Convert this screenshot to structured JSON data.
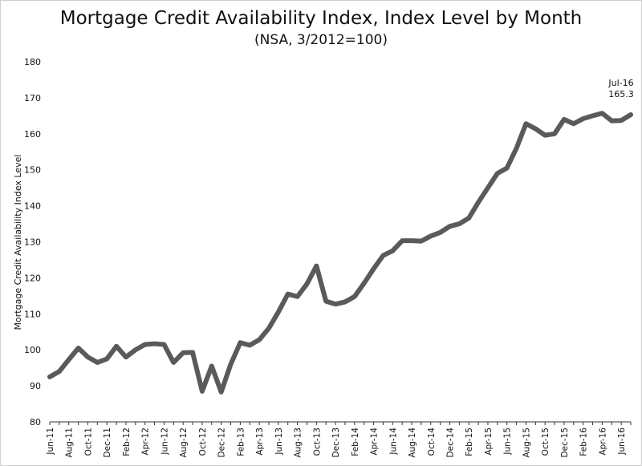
{
  "chart_data": {
    "type": "line",
    "title": "Mortgage Credit Availability Index, Index Level by Month",
    "subtitle": "(NSA, 3/2012=100)",
    "xlabel": "",
    "ylabel": "Mortgage Credit Availability Index Level",
    "ylim": [
      80,
      180
    ],
    "y_ticks": [
      80,
      90,
      100,
      110,
      120,
      130,
      140,
      150,
      160,
      170,
      180
    ],
    "grid": false,
    "color": "#5a5a5a",
    "x_tick_labels": [
      "Jun-11",
      "Aug-11",
      "Oct-11",
      "Dec-11",
      "Feb-12",
      "Apr-12",
      "Jun-12",
      "Aug-12",
      "Oct-12",
      "Dec-12",
      "Feb-13",
      "Apr-13",
      "Jun-13",
      "Aug-13",
      "Oct-13",
      "Dec-13",
      "Feb-14",
      "Apr-14",
      "Jun-14",
      "Aug-14",
      "Oct-14",
      "Dec-14",
      "Feb-15",
      "Apr-15",
      "Jun-15",
      "Aug-15",
      "Oct-15",
      "Dec-15",
      "Feb-16",
      "Apr-16",
      "Jun-16"
    ],
    "x": [
      "Jun-11",
      "Jul-11",
      "Aug-11",
      "Sep-11",
      "Oct-11",
      "Nov-11",
      "Dec-11",
      "Jan-12",
      "Feb-12",
      "Mar-12",
      "Apr-12",
      "May-12",
      "Jun-12",
      "Jul-12",
      "Aug-12",
      "Sep-12",
      "Oct-12",
      "Nov-12",
      "Dec-12",
      "Jan-13",
      "Feb-13",
      "Mar-13",
      "Apr-13",
      "May-13",
      "Jun-13",
      "Jul-13",
      "Aug-13",
      "Sep-13",
      "Oct-13",
      "Nov-13",
      "Dec-13",
      "Jan-14",
      "Feb-14",
      "Mar-14",
      "Apr-14",
      "May-14",
      "Jun-14",
      "Jul-14",
      "Aug-14",
      "Sep-14",
      "Oct-14",
      "Nov-14",
      "Dec-14",
      "Jan-15",
      "Feb-15",
      "Mar-15",
      "Apr-15",
      "May-15",
      "Jun-15",
      "Jul-15",
      "Aug-15",
      "Sep-15",
      "Oct-15",
      "Nov-15",
      "Dec-15",
      "Jan-16",
      "Feb-16",
      "Mar-16",
      "Apr-16",
      "May-16",
      "Jun-16",
      "Jul-16"
    ],
    "values": [
      92.5,
      94.0,
      97.3,
      100.5,
      98.0,
      96.5,
      97.5,
      101.0,
      98.0,
      100.0,
      101.5,
      101.7,
      101.5,
      96.5,
      99.2,
      99.3,
      88.5,
      95.5,
      88.3,
      96.0,
      102.0,
      101.3,
      102.8,
      106.0,
      110.5,
      115.5,
      114.8,
      118.3,
      123.3,
      113.5,
      112.7,
      113.3,
      114.8,
      118.5,
      122.5,
      126.2,
      127.5,
      130.3,
      130.3,
      130.2,
      131.6,
      132.6,
      134.3,
      135.0,
      136.6,
      141.0,
      145.0,
      149.0,
      150.5,
      156.0,
      162.8,
      161.4,
      159.6,
      160.0,
      164.0,
      162.8,
      164.2,
      165.0,
      165.7,
      163.6,
      163.7,
      165.3
    ],
    "annotation": {
      "label": "Jul-16",
      "value_label": "165.3"
    }
  }
}
